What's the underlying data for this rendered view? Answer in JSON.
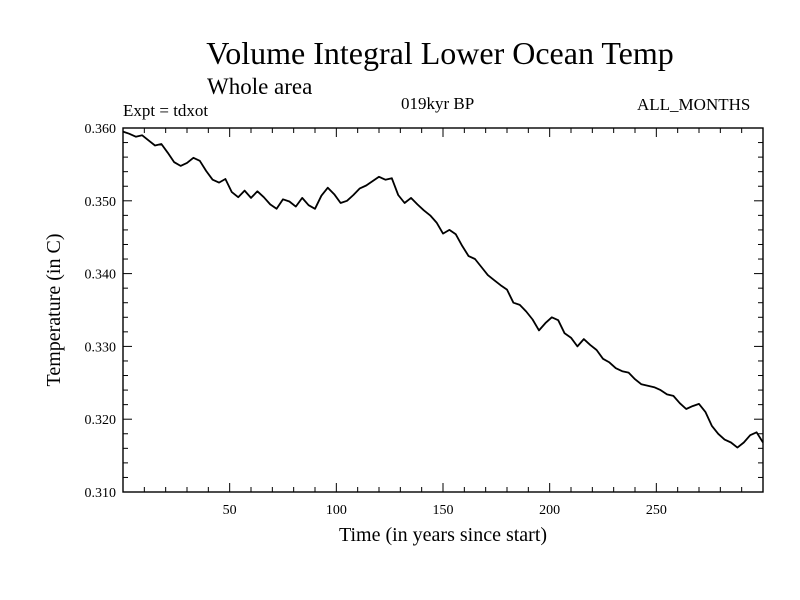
{
  "header": {
    "title": "Volume Integral Lower Ocean Temp",
    "subtitle": "Whole area",
    "experiment": "Expt = tdxot",
    "period": "019kyr BP",
    "months": "ALL_MONTHS"
  },
  "chart_data": {
    "type": "line",
    "title": "Volume Integral Lower Ocean Temp",
    "subtitle": "Whole area",
    "xlabel": "Time (in years since start)",
    "ylabel": "Temperature (in C)",
    "xlim": [
      0,
      300
    ],
    "ylim": [
      0.31,
      0.36
    ],
    "x_ticks": [
      50,
      100,
      150,
      200,
      250
    ],
    "y_ticks": [
      0.31,
      0.32,
      0.33,
      0.34,
      0.35,
      0.36
    ],
    "y_tick_labels": [
      "0.310",
      "0.320",
      "0.330",
      "0.340",
      "0.350",
      "0.360"
    ],
    "grid": false,
    "series": [
      {
        "color": "#000000",
        "x": [
          0,
          3,
          6,
          9,
          12,
          15,
          18,
          21,
          24,
          27,
          30,
          33,
          36,
          39,
          42,
          45,
          48,
          51,
          54,
          57,
          60,
          63,
          66,
          69,
          72,
          75,
          78,
          81,
          84,
          87,
          90,
          93,
          96,
          99,
          102,
          105,
          108,
          111,
          114,
          117,
          120,
          123,
          126,
          129,
          132,
          135,
          138,
          141,
          144,
          147,
          150,
          153,
          156,
          159,
          162,
          165,
          168,
          171,
          174,
          177,
          180,
          183,
          186,
          189,
          192,
          195,
          198,
          201,
          204,
          207,
          210,
          213,
          216,
          219,
          222,
          225,
          228,
          231,
          234,
          237,
          240,
          243,
          246,
          249,
          252,
          255,
          258,
          261,
          264,
          267,
          270,
          273,
          276,
          279,
          282,
          285,
          288,
          291,
          294,
          297,
          300
        ],
        "y": [
          0.3595,
          0.3592,
          0.3588,
          0.359,
          0.3583,
          0.3576,
          0.3578,
          0.3566,
          0.3553,
          0.3548,
          0.3552,
          0.3559,
          0.3555,
          0.3541,
          0.3529,
          0.3525,
          0.353,
          0.3512,
          0.3505,
          0.3514,
          0.3504,
          0.3513,
          0.3505,
          0.3495,
          0.3489,
          0.3502,
          0.3499,
          0.3492,
          0.3504,
          0.3494,
          0.3489,
          0.3507,
          0.3518,
          0.3509,
          0.3497,
          0.35,
          0.3508,
          0.3517,
          0.3521,
          0.3527,
          0.3533,
          0.3529,
          0.3531,
          0.3508,
          0.3497,
          0.3504,
          0.3495,
          0.3487,
          0.348,
          0.347,
          0.3455,
          0.346,
          0.3454,
          0.3438,
          0.3424,
          0.342,
          0.3409,
          0.3398,
          0.3391,
          0.3384,
          0.3378,
          0.336,
          0.3357,
          0.3348,
          0.3337,
          0.3322,
          0.3332,
          0.334,
          0.3336,
          0.3318,
          0.3312,
          0.33,
          0.331,
          0.3302,
          0.3295,
          0.3283,
          0.3278,
          0.327,
          0.3266,
          0.3264,
          0.3255,
          0.3248,
          0.3246,
          0.3244,
          0.324,
          0.3234,
          0.3232,
          0.3222,
          0.3214,
          0.3218,
          0.3221,
          0.321,
          0.3191,
          0.318,
          0.3172,
          0.3168,
          0.3161,
          0.3168,
          0.3178,
          0.3182,
          0.3168
        ]
      }
    ]
  }
}
